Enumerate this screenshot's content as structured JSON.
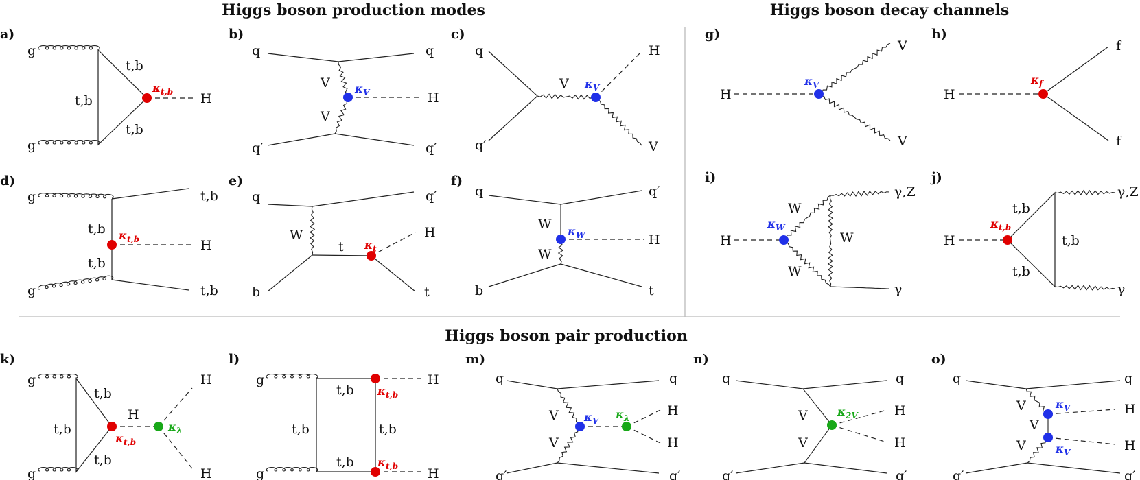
{
  "titles": {
    "production": "Higgs boson production modes",
    "decay": "Higgs boson decay channels",
    "pair": "Higgs boson pair production"
  },
  "colors": {
    "red": "#e00000",
    "blue": "#2030e8",
    "green": "#18a818",
    "line": "#222222",
    "separator": "#bbbbbb"
  },
  "panels": {
    "a": {
      "label": "a)",
      "g1": "g",
      "g2": "g",
      "top": "t,b",
      "left": "t,b",
      "bottom": "t,b",
      "H": "H",
      "kappa": "κt,b"
    },
    "b": {
      "label": "b)",
      "q_in": "q",
      "q_out": "q",
      "qp_in": "q′",
      "qp_out": "q′",
      "V1": "V",
      "V2": "V",
      "H": "H",
      "kappa": "κV"
    },
    "c": {
      "label": "c)",
      "q": "q",
      "qp": "q′",
      "V": "V",
      "H": "H",
      "Vout": "V",
      "kappa": "κV"
    },
    "d": {
      "label": "d)",
      "g1": "g",
      "g2": "g",
      "tb1": "t,b",
      "tb2": "t,b",
      "tb_top": "t,b",
      "tb_bot": "t,b",
      "H": "H",
      "kappa": "κt,b"
    },
    "e": {
      "label": "e)",
      "q": "q",
      "qp": "q′",
      "W": "W",
      "t_mid": "t",
      "b": "b",
      "H": "H",
      "t_out": "t",
      "kappa": "κt"
    },
    "f": {
      "label": "f)",
      "q": "q",
      "qp": "q′",
      "W1": "W",
      "W2": "W",
      "H": "H",
      "b": "b",
      "t": "t",
      "kappa": "κW"
    },
    "g": {
      "label": "g)",
      "H": "H",
      "V1": "V",
      "V2": "V",
      "kappa": "κV"
    },
    "h": {
      "label": "h)",
      "H": "H",
      "f1": "f",
      "f2": "f",
      "kappa": "κf"
    },
    "i": {
      "label": "i)",
      "H": "H",
      "W1": "W",
      "W2": "W",
      "W3": "W",
      "gz": "γ,Z",
      "gamma": "γ",
      "kappa": "κW"
    },
    "j": {
      "label": "j)",
      "H": "H",
      "tb1": "t,b",
      "tb2": "t,b",
      "tb3": "t,b",
      "gz": "γ,Z",
      "gamma": "γ",
      "kappa": "κt,b"
    },
    "k": {
      "label": "k)",
      "g1": "g",
      "g2": "g",
      "tb1": "t,b",
      "tb2": "t,b",
      "tb3": "t,b",
      "H_mid": "H",
      "H1": "H",
      "H2": "H",
      "kappa_tb": "κt,b",
      "kappa_l": "κλ"
    },
    "l": {
      "label": "l)",
      "g1": "g",
      "g2": "g",
      "tb1": "t,b",
      "tb2": "t,b",
      "tb3": "t,b",
      "tb4": "t,b",
      "H1": "H",
      "H2": "H",
      "kappa1": "κt,b",
      "kappa2": "κt,b"
    },
    "m": {
      "label": "m)",
      "q": "q",
      "q_out": "q",
      "qp": "q′",
      "qp_out": "q′",
      "V1": "V",
      "V2": "V",
      "H1": "H",
      "H2": "H",
      "kappa_V": "κV",
      "kappa_l": "κλ"
    },
    "n": {
      "label": "n)",
      "q": "q",
      "q_out": "q",
      "qp": "q′",
      "qp_out": "q′",
      "V1": "V",
      "V2": "V",
      "H1": "H",
      "H2": "H",
      "kappa": "κ2V"
    },
    "o": {
      "label": "o)",
      "q": "q",
      "q_out": "q",
      "qp": "q′",
      "qp_out": "q′",
      "V1": "V",
      "V2": "V",
      "V3": "V",
      "H1": "H",
      "H2": "H",
      "kappa1": "κV",
      "kappa2": "κV"
    }
  }
}
